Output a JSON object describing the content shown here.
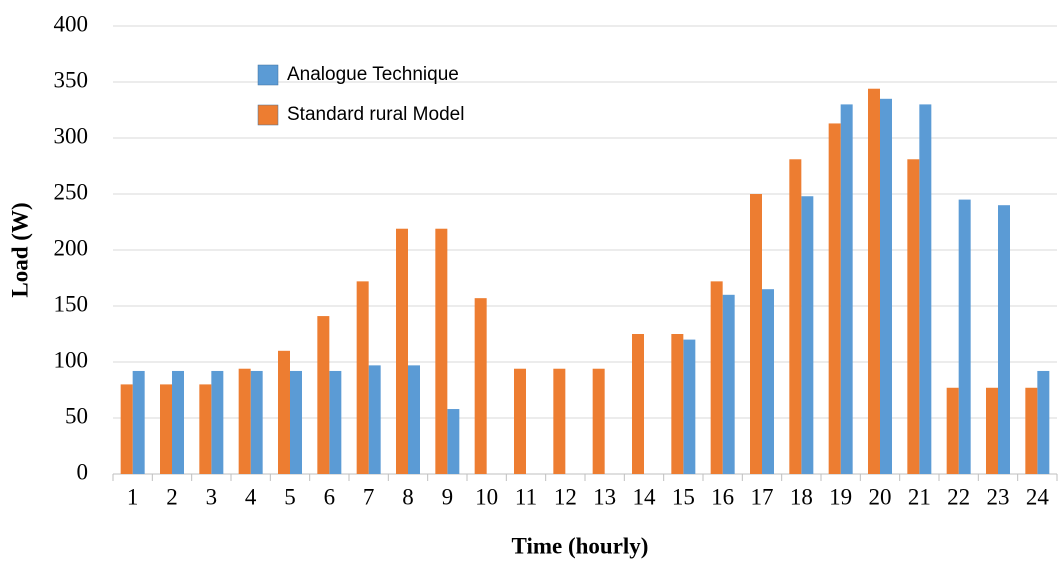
{
  "chart_data": {
    "type": "bar",
    "x_label": "Time (hourly)",
    "y_label": "Load (W)",
    "categories": [
      "1",
      "2",
      "3",
      "4",
      "5",
      "6",
      "7",
      "8",
      "9",
      "10",
      "11",
      "12",
      "13",
      "14",
      "15",
      "16",
      "17",
      "18",
      "19",
      "20",
      "21",
      "22",
      "23",
      "24"
    ],
    "series": [
      {
        "name": "Analogue Technique",
        "color": "#5b9bd5",
        "values": [
          92,
          92,
          92,
          92,
          92,
          92,
          97,
          97,
          58,
          0,
          0,
          0,
          0,
          0,
          120,
          160,
          165,
          248,
          330,
          335,
          330,
          245,
          240,
          92
        ]
      },
      {
        "name": "Standard rural Model",
        "color": "#ed7d31",
        "values": [
          80,
          80,
          80,
          94,
          110,
          141,
          172,
          219,
          219,
          157,
          94,
          94,
          94,
          125,
          125,
          172,
          250,
          281,
          313,
          344,
          281,
          77,
          77,
          77
        ]
      }
    ],
    "ylim": [
      0,
      400
    ],
    "yticks": [
      0,
      50,
      100,
      150,
      200,
      250,
      300,
      350,
      400
    ],
    "grid": true,
    "legend": "upper left"
  }
}
